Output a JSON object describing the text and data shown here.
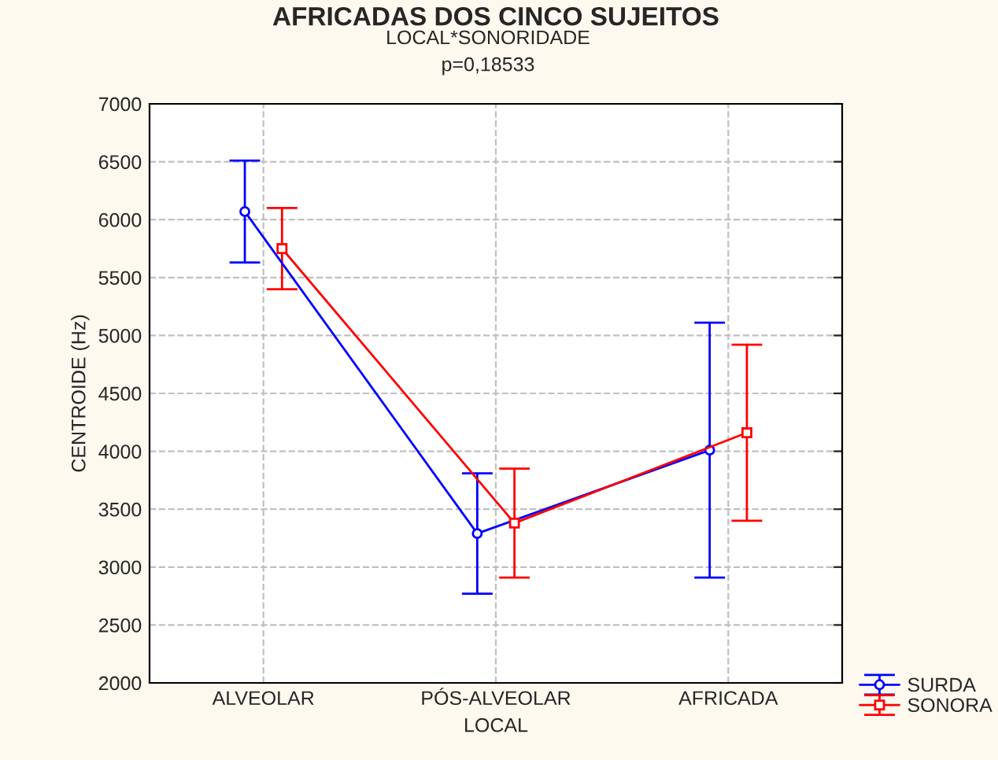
{
  "chart_data": {
    "type": "line",
    "title": "AFRICADAS DOS CINCO SUJEITOS",
    "subtitle": "LOCAL*SONORIDADE\np=0,18533",
    "xlabel": "LOCAL",
    "ylabel": "CENTROIDE (Hz)",
    "categories": [
      "ALVEOLAR",
      "PÓS-ALVEOLAR",
      "AFRICADA"
    ],
    "series": [
      {
        "name": "SURDA",
        "color": "#0000ff",
        "marker": "circle",
        "values": [
          6070,
          3290,
          4010
        ],
        "errors": [
          440,
          520,
          1100
        ]
      },
      {
        "name": "SONORA",
        "color": "#ff0000",
        "marker": "square",
        "values": [
          5750,
          3380,
          4160
        ],
        "errors": [
          350,
          470,
          760
        ]
      }
    ],
    "ylim": [
      2000,
      7000
    ],
    "yticks": [
      2000,
      2500,
      3000,
      3500,
      4000,
      4500,
      5000,
      5500,
      6000,
      6500,
      7000
    ],
    "grid": true,
    "legend": "bottom right",
    "line_style": "solid"
  }
}
